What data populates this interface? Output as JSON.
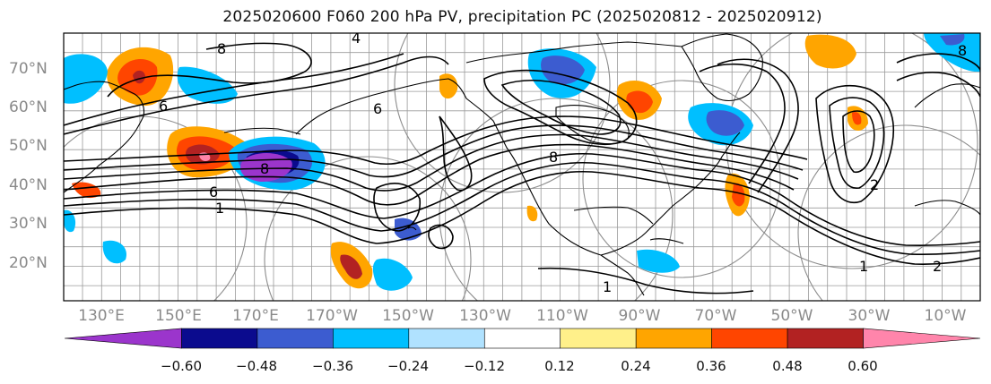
{
  "title": "2025020600 F060 200 hPa PV, precipitation PC (2025020812 - 2025020912)",
  "lat_labels": [
    "70°N",
    "60°N",
    "50°N",
    "40°N",
    "30°N",
    "20°N"
  ],
  "lon_labels": [
    "130°E",
    "150°E",
    "170°E",
    "170°W",
    "150°W",
    "130°W",
    "110°W",
    "90°W",
    "70°W",
    "50°W",
    "30°W",
    "10°W"
  ],
  "contour_labels": [
    "1",
    "2",
    "4",
    "6",
    "8"
  ],
  "colorbar": {
    "colors": [
      "#9b35cc",
      "#0b0b8e",
      "#3c5cd0",
      "#00bfff",
      "#b0e2ff",
      "#ffffff",
      "#fff08a",
      "#ffa500",
      "#ff4500",
      "#b22222",
      "#ff85ab"
    ],
    "tick_labels": [
      "−0.60",
      "−0.48",
      "−0.36",
      "−0.24",
      "−0.12",
      "0.12",
      "0.24",
      "0.36",
      "0.48",
      "0.60"
    ]
  }
}
